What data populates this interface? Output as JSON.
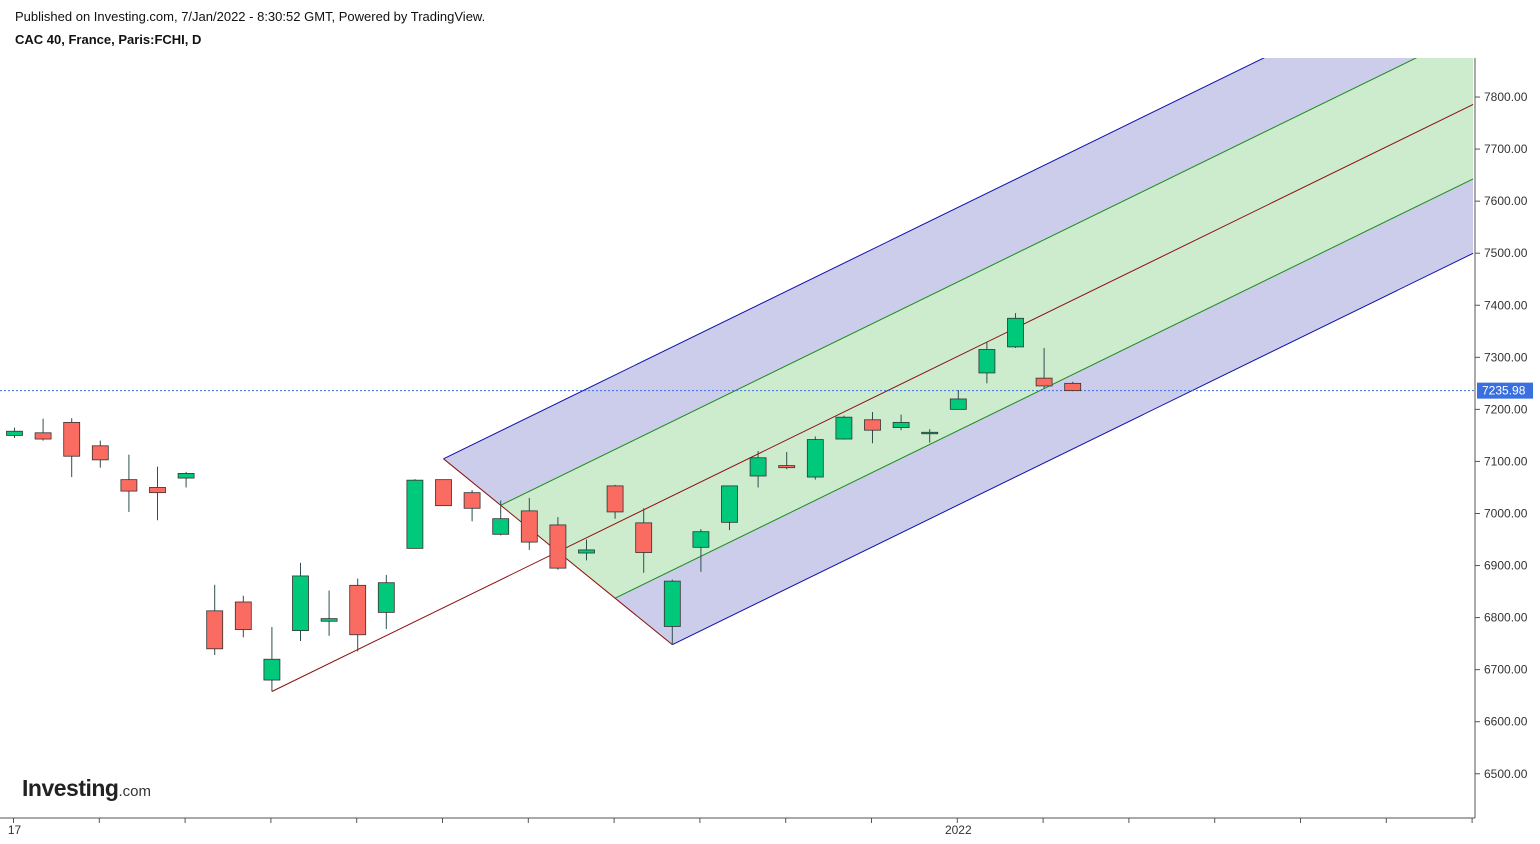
{
  "header": {
    "published_line": "Published on Investing.com, 7/Jan/2022 - 8:30:52 GMT, Powered by TradingView.",
    "instrument_line": "CAC 40, France, Paris:FCHI, D"
  },
  "logo": {
    "brand": "Investing",
    "tld": ".com"
  },
  "colors": {
    "up": "#00c97b",
    "down": "#fa6b61",
    "wick": "#2f4f4f",
    "outer_band": "#cbcdeb",
    "inner_band": "#cdebcd",
    "outer_line": "#1010aa",
    "inner_line": "#1c8c1c",
    "median_line": "#8b1010",
    "price_tag": "#3a6fe0",
    "axis_text": "#333333"
  },
  "chart_data": {
    "type": "candlestick",
    "title": "CAC 40, France, Paris:FCHI, D",
    "y_ticks": [
      6500,
      6600,
      6700,
      6800,
      6900,
      7000,
      7100,
      7200,
      7300,
      7400,
      7500,
      7600,
      7700,
      7800
    ],
    "y_tick_labels": [
      "6500.00",
      "6600.00",
      "6700.00",
      "6800.00",
      "6900.00",
      "7000.00",
      "7100.00",
      "7200.00",
      "7300.00",
      "7400.00",
      "7500.00",
      "7600.00",
      "7700.00",
      "7800.00"
    ],
    "ylim": [
      6415,
      7875
    ],
    "x_labels": [
      {
        "index": 0,
        "label": "17"
      },
      {
        "index": 33,
        "label": "2022"
      }
    ],
    "last_price": 7235.98,
    "last_price_label": "7235.98",
    "candles": [
      {
        "o": 7150,
        "h": 7165,
        "l": 7145,
        "c": 7158
      },
      {
        "o": 7155,
        "h": 7182,
        "l": 7140,
        "c": 7143
      },
      {
        "o": 7175,
        "h": 7183,
        "l": 7070,
        "c": 7110
      },
      {
        "o": 7130,
        "h": 7140,
        "l": 7088,
        "c": 7103
      },
      {
        "o": 7065,
        "h": 7113,
        "l": 7003,
        "c": 7043
      },
      {
        "o": 7050,
        "h": 7090,
        "l": 6987,
        "c": 7040
      },
      {
        "o": 7068,
        "h": 7080,
        "l": 7050,
        "c": 7077
      },
      {
        "o": 6813,
        "h": 6863,
        "l": 6728,
        "c": 6740
      },
      {
        "o": 6830,
        "h": 6842,
        "l": 6762,
        "c": 6777
      },
      {
        "o": 6680,
        "h": 6782,
        "l": 6658,
        "c": 6720
      },
      {
        "o": 6775,
        "h": 6905,
        "l": 6755,
        "c": 6880
      },
      {
        "o": 6793,
        "h": 6852,
        "l": 6765,
        "c": 6798
      },
      {
        "o": 6862,
        "h": 6875,
        "l": 6735,
        "c": 6767
      },
      {
        "o": 6810,
        "h": 6882,
        "l": 6778,
        "c": 6867
      },
      {
        "o": 6933,
        "h": 7066,
        "l": 6933,
        "c": 7064
      },
      {
        "o": 7065,
        "h": 7065,
        "l": 7015,
        "c": 7015
      },
      {
        "o": 7040,
        "h": 7045,
        "l": 6985,
        "c": 7010
      },
      {
        "o": 6960,
        "h": 7025,
        "l": 6958,
        "c": 6990
      },
      {
        "o": 7005,
        "h": 7030,
        "l": 6930,
        "c": 6945
      },
      {
        "o": 6978,
        "h": 6993,
        "l": 6892,
        "c": 6895
      },
      {
        "o": 6924,
        "h": 6950,
        "l": 6910,
        "c": 6930
      },
      {
        "o": 7053,
        "h": 7055,
        "l": 6990,
        "c": 7003
      },
      {
        "o": 6982,
        "h": 7010,
        "l": 6886,
        "c": 6925
      },
      {
        "o": 6783,
        "h": 6873,
        "l": 6748,
        "c": 6870
      },
      {
        "o": 6935,
        "h": 6970,
        "l": 6888,
        "c": 6965
      },
      {
        "o": 6983,
        "h": 7053,
        "l": 6968,
        "c": 7053
      },
      {
        "o": 7072,
        "h": 7120,
        "l": 7050,
        "c": 7107
      },
      {
        "o": 7092,
        "h": 7118,
        "l": 7085,
        "c": 7088
      },
      {
        "o": 7070,
        "h": 7148,
        "l": 7065,
        "c": 7142
      },
      {
        "o": 7143,
        "h": 7188,
        "l": 7142,
        "c": 7185
      },
      {
        "o": 7180,
        "h": 7195,
        "l": 7135,
        "c": 7160
      },
      {
        "o": 7165,
        "h": 7190,
        "l": 7160,
        "c": 7175
      },
      {
        "o": 7155,
        "h": 7162,
        "l": 7136,
        "c": 7156
      },
      {
        "o": 7200,
        "h": 7237,
        "l": 7200,
        "c": 7220
      },
      {
        "o": 7270,
        "h": 7330,
        "l": 7250,
        "c": 7315
      },
      {
        "o": 7320,
        "h": 7385,
        "l": 7318,
        "c": 7375
      },
      {
        "o": 7260,
        "h": 7318,
        "l": 7240,
        "c": 7245
      },
      {
        "o": 7250,
        "h": 7253,
        "l": 7235,
        "c": 7236
      }
    ],
    "andrews_pitchfork": {
      "pivot_a": {
        "index": 9,
        "price": 6658
      },
      "pivot_b": {
        "index": 15,
        "price": 7105
      },
      "pivot_c": {
        "index": 23,
        "price": 6748
      },
      "extends_to_index": 51
    }
  }
}
